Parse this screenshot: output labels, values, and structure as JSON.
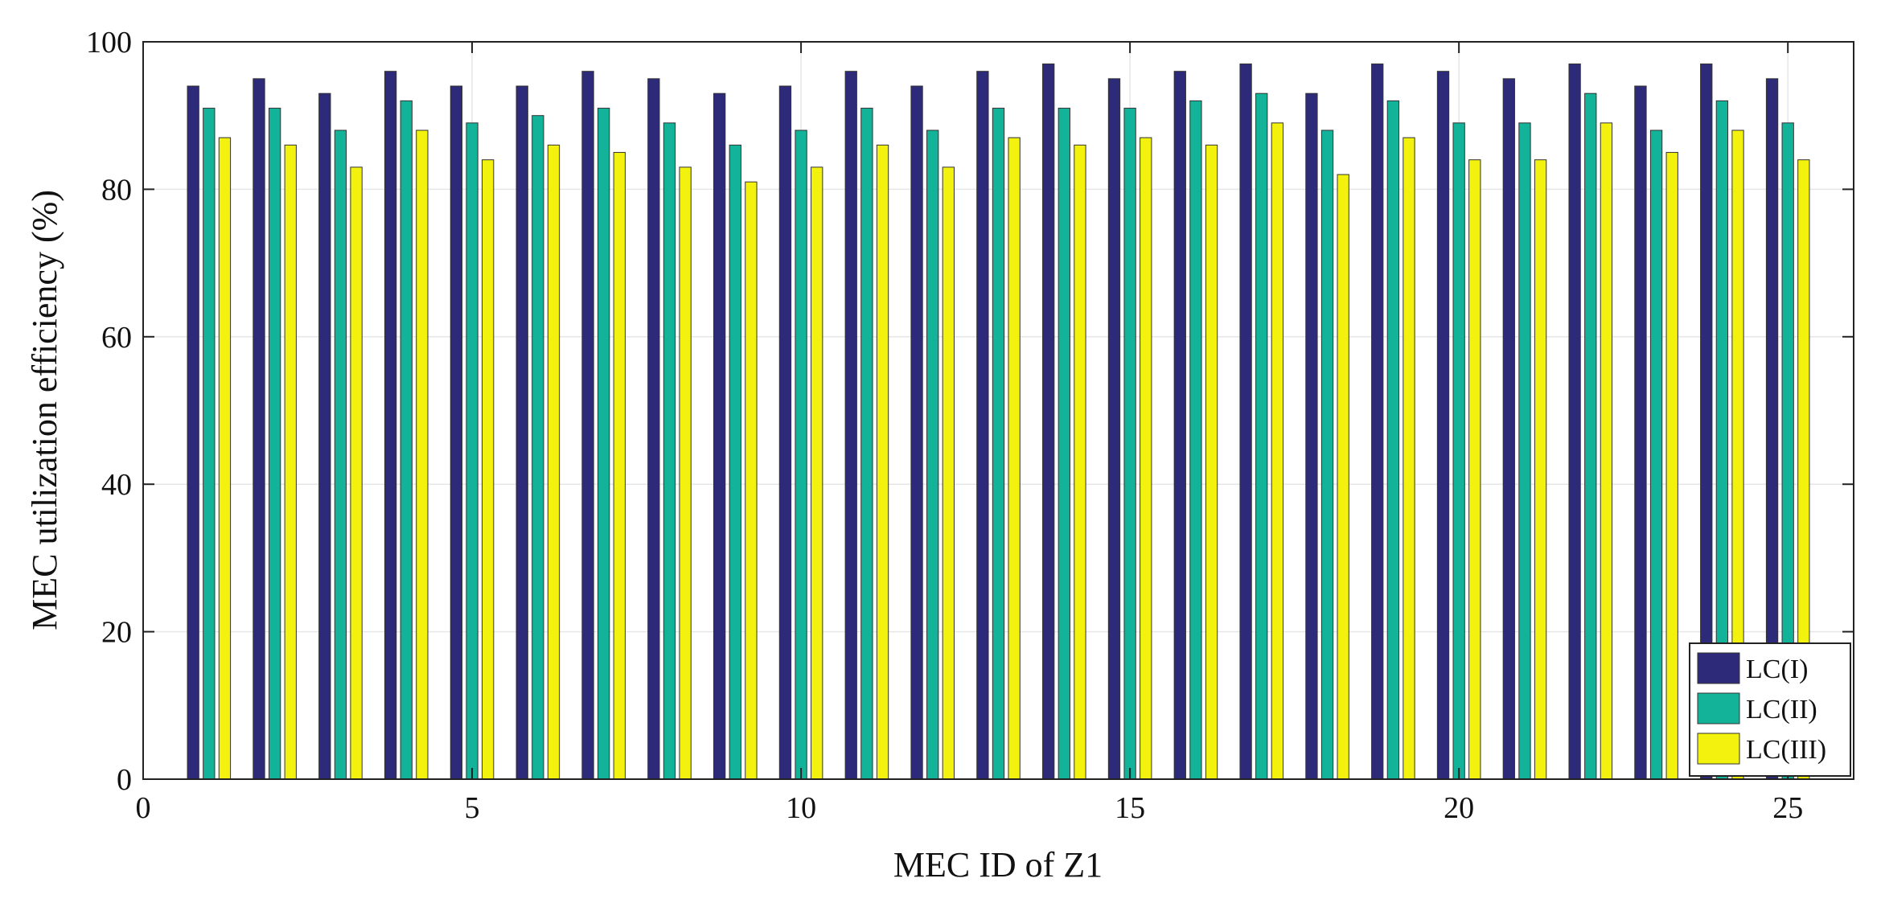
{
  "chart_data": {
    "type": "bar",
    "xlabel": "MEC ID of Z1",
    "ylabel": "MEC utilization efficiency (%)",
    "xlim": [
      0,
      26
    ],
    "ylim": [
      0,
      100
    ],
    "xticks": [
      "0",
      "5",
      "10",
      "15",
      "20",
      "25"
    ],
    "yticks": [
      "0",
      "20",
      "40",
      "60",
      "80",
      "100"
    ],
    "legend_position": "bottom-right",
    "categories": [
      1,
      2,
      3,
      4,
      5,
      6,
      7,
      8,
      9,
      10,
      11,
      12,
      13,
      14,
      15,
      16,
      17,
      18,
      19,
      20,
      21,
      22,
      23,
      24,
      25
    ],
    "series": [
      {
        "name": "LC(I)",
        "color": "#2e2a7a",
        "values": [
          94,
          95,
          93,
          96,
          94,
          94,
          96,
          95,
          93,
          94,
          96,
          94,
          96,
          97,
          95,
          96,
          97,
          93,
          97,
          96,
          95,
          97,
          94,
          97,
          95
        ]
      },
      {
        "name": "LC(II)",
        "color": "#13b39a",
        "values": [
          91,
          91,
          88,
          92,
          89,
          90,
          91,
          89,
          86,
          88,
          91,
          88,
          91,
          91,
          91,
          92,
          93,
          88,
          92,
          89,
          89,
          93,
          88,
          92,
          89
        ]
      },
      {
        "name": "LC(III)",
        "color": "#f2f20e",
        "values": [
          87,
          86,
          83,
          88,
          84,
          86,
          85,
          83,
          81,
          83,
          86,
          83,
          87,
          86,
          87,
          86,
          89,
          82,
          87,
          84,
          84,
          89,
          85,
          88,
          84
        ]
      }
    ]
  }
}
